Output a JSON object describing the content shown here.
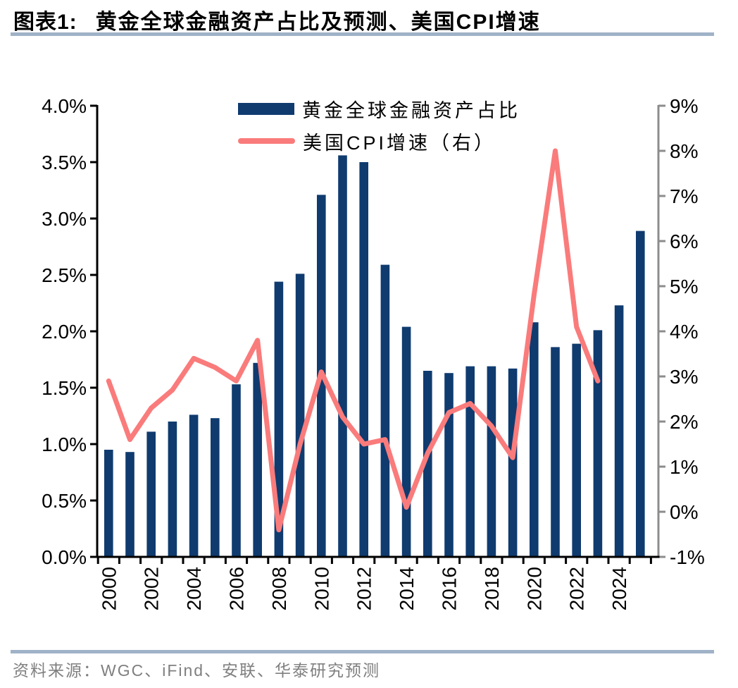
{
  "header": {
    "label": "图表1:",
    "title": "黄金全球金融资产占比及预测、美国CPI增速"
  },
  "legend": [
    {
      "label": "黄金全球金融资产占比",
      "swatch": "bar"
    },
    {
      "label": "美国CPI增速（右）",
      "swatch": "line"
    }
  ],
  "source": {
    "text": "资料来源：WGC、iFind、安联、华泰研究预测"
  },
  "colors": {
    "bar": "#0f3b6f",
    "line": "#fa7b7b",
    "rule": "#9fb2c7",
    "axis": "#000000",
    "right_axis": "#8c8c8c",
    "source_text": "#7f7f7f"
  },
  "chart_data": {
    "type": "bar",
    "subtype": "combo-bar-line-dual-axis",
    "title": "黄金全球金融资产占比及预测、美国CPI增速",
    "grid": false,
    "legend_position": "top-center",
    "categories": [
      "2000",
      "2001",
      "2002",
      "2003",
      "2004",
      "2005",
      "2006",
      "2007",
      "2008",
      "2009",
      "2010",
      "2011",
      "2012",
      "2013",
      "2014",
      "2015",
      "2016",
      "2017",
      "2018",
      "2019",
      "2020",
      "2021",
      "2022",
      "2023",
      "2024",
      "2025"
    ],
    "series": [
      {
        "name": "黄金全球金融资产占比",
        "type": "bar",
        "axis": "left",
        "unit": "%",
        "values": [
          0.95,
          0.93,
          1.11,
          1.2,
          1.26,
          1.23,
          1.53,
          1.72,
          2.44,
          2.51,
          3.21,
          3.56,
          3.5,
          2.59,
          2.04,
          1.65,
          1.63,
          1.69,
          1.69,
          1.67,
          2.08,
          1.86,
          1.89,
          2.01,
          2.23,
          2.89
        ]
      },
      {
        "name": "美国CPI增速（右）",
        "type": "line",
        "axis": "right",
        "unit": "%",
        "values": [
          2.9,
          1.6,
          2.3,
          2.7,
          3.4,
          3.2,
          2.9,
          3.8,
          -0.4,
          1.5,
          3.1,
          2.1,
          1.5,
          1.6,
          0.1,
          1.3,
          2.2,
          2.4,
          1.9,
          1.2,
          4.8,
          8.0,
          4.1,
          2.9,
          null,
          null
        ]
      }
    ],
    "left_axis": {
      "min": 0,
      "max": 4,
      "tick_step": 0.5,
      "tick_labels": [
        "0.0%",
        "0.5%",
        "1.0%",
        "1.5%",
        "2.0%",
        "2.5%",
        "3.0%",
        "3.5%",
        "4.0%"
      ]
    },
    "right_axis": {
      "min": -1,
      "max": 9,
      "tick_step": 1,
      "tick_labels": [
        "-1%",
        "0%",
        "1%",
        "2%",
        "3%",
        "4%",
        "5%",
        "6%",
        "7%",
        "8%",
        "9%"
      ]
    },
    "x_axis": {
      "label_every": 2,
      "tick_labels": [
        "2000",
        "2002",
        "2004",
        "2006",
        "2008",
        "2010",
        "2012",
        "2014",
        "2016",
        "2018",
        "2020",
        "2022",
        "2024"
      ]
    }
  }
}
